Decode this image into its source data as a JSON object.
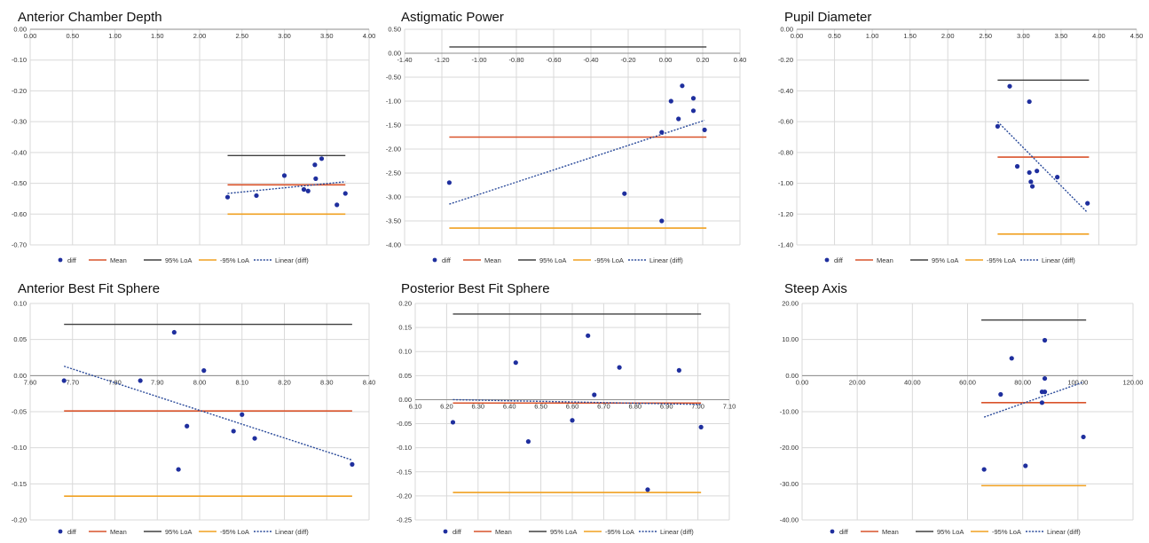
{
  "colors": {
    "point": "#1f2f9e",
    "mean": "#d9532b",
    "upper_loa": "#404040",
    "lower_loa": "#f0a020",
    "trend": "#2a4a9a",
    "grid": "#d9d9d9"
  },
  "legend": [
    "diff",
    "Mean",
    "95% LoA",
    "-95% LoA",
    "Linear (diff)"
  ],
  "chart_data": [
    {
      "type": "scatter",
      "title": "Anterior Chamber Depth",
      "xlim": [
        0,
        4
      ],
      "ylim": [
        -0.7,
        0
      ],
      "x_axis_at": 0,
      "x_ticks": [
        "0.00",
        "0.50",
        "1.00",
        "1.50",
        "2.00",
        "2.50",
        "3.00",
        "3.50",
        "4.00"
      ],
      "y_ticks": [
        "0.00",
        "-0.10",
        "-0.20",
        "-0.30",
        "-0.40",
        "-0.50",
        "-0.60",
        "-0.70"
      ],
      "points": [
        [
          2.33,
          -0.545
        ],
        [
          2.67,
          -0.54
        ],
        [
          3.0,
          -0.475
        ],
        [
          3.23,
          -0.52
        ],
        [
          3.28,
          -0.525
        ],
        [
          3.36,
          -0.44
        ],
        [
          3.37,
          -0.485
        ],
        [
          3.44,
          -0.42
        ],
        [
          3.62,
          -0.57
        ],
        [
          3.72,
          -0.533
        ]
      ],
      "mean": -0.505,
      "loa_upper": -0.41,
      "loa_lower": -0.6,
      "line_range": [
        2.33,
        3.72
      ],
      "trend": [
        [
          2.33,
          -0.533
        ],
        [
          3.72,
          -0.495
        ]
      ]
    },
    {
      "type": "scatter",
      "title": "Astigmatic Power",
      "xlim": [
        -1.4,
        0.4
      ],
      "ylim": [
        -4.0,
        0.5
      ],
      "x_axis_at": 0,
      "x_ticks": [
        "-1.40",
        "-1.20",
        "-1.00",
        "-0.80",
        "-0.60",
        "-0.40",
        "-0.20",
        "0.00",
        "0.20",
        "0.40"
      ],
      "y_ticks": [
        "0.50",
        "0.00",
        "-0.50",
        "-1.00",
        "-1.50",
        "-2.00",
        "-2.50",
        "-3.00",
        "-3.50",
        "-4.00"
      ],
      "points": [
        [
          -1.16,
          -2.7
        ],
        [
          -0.22,
          -2.93
        ],
        [
          -0.02,
          -1.65
        ],
        [
          -0.02,
          -3.5
        ],
        [
          0.03,
          -1.0
        ],
        [
          0.07,
          -1.37
        ],
        [
          0.09,
          -0.68
        ],
        [
          0.15,
          -0.94
        ],
        [
          0.15,
          -1.2
        ],
        [
          0.21,
          -1.6
        ]
      ],
      "mean": -1.75,
      "loa_upper": 0.13,
      "loa_lower": -3.65,
      "line_range": [
        -1.16,
        0.22
      ],
      "trend": [
        [
          -1.16,
          -3.15
        ],
        [
          0.21,
          -1.4
        ]
      ]
    },
    {
      "type": "scatter",
      "title": "Pupil Diameter",
      "xlim": [
        0,
        4.5
      ],
      "ylim": [
        -1.4,
        0
      ],
      "x_axis_at": 0,
      "x_ticks": [
        "0.00",
        "0.50",
        "1.00",
        "1.50",
        "2.00",
        "2.50",
        "3.00",
        "3.50",
        "4.00",
        "4.50"
      ],
      "y_ticks": [
        "0.00",
        "-0.20",
        "-0.40",
        "-0.60",
        "-0.80",
        "-1.00",
        "-1.20",
        "-1.40"
      ],
      "points": [
        [
          2.66,
          -0.63
        ],
        [
          2.82,
          -0.37
        ],
        [
          2.92,
          -0.89
        ],
        [
          3.08,
          -0.47
        ],
        [
          3.08,
          -0.93
        ],
        [
          3.1,
          -0.99
        ],
        [
          3.12,
          -1.02
        ],
        [
          3.18,
          -0.92
        ],
        [
          3.45,
          -0.96
        ],
        [
          3.85,
          -1.13
        ]
      ],
      "mean": -0.83,
      "loa_upper": -0.33,
      "loa_lower": -1.33,
      "line_range": [
        2.66,
        3.87
      ],
      "trend": [
        [
          2.66,
          -0.6
        ],
        [
          3.85,
          -1.19
        ]
      ]
    },
    {
      "type": "scatter",
      "title": "Anterior Best Fit Sphere",
      "xlim": [
        7.6,
        8.4
      ],
      "ylim": [
        -0.2,
        0.1
      ],
      "x_axis_at": 0,
      "x_ticks": [
        "7.60",
        "7.70",
        "7.80",
        "7.90",
        "8.00",
        "8.10",
        "8.20",
        "8.30",
        "8.40"
      ],
      "y_ticks": [
        "0.10",
        "0.05",
        "0.00",
        "-0.05",
        "-0.10",
        "-0.15",
        "-0.20"
      ],
      "points": [
        [
          7.68,
          -0.007
        ],
        [
          7.86,
          -0.007
        ],
        [
          7.94,
          0.06
        ],
        [
          7.95,
          -0.13
        ],
        [
          7.97,
          -0.07
        ],
        [
          8.01,
          0.007
        ],
        [
          8.08,
          -0.077
        ],
        [
          8.1,
          -0.054
        ],
        [
          8.13,
          -0.087
        ],
        [
          8.36,
          -0.123
        ]
      ],
      "mean": -0.049,
      "loa_upper": 0.071,
      "loa_lower": -0.167,
      "line_range": [
        7.68,
        8.36
      ],
      "trend": [
        [
          7.68,
          0.013
        ],
        [
          8.36,
          -0.117
        ]
      ]
    },
    {
      "type": "scatter",
      "title": "Posterior Best Fit Sphere",
      "xlim": [
        6.1,
        7.1
      ],
      "ylim": [
        -0.25,
        0.2
      ],
      "x_axis_at": 0,
      "x_ticks": [
        "6.10",
        "6.20",
        "6.30",
        "6.40",
        "6.50",
        "6.60",
        "6.70",
        "6.80",
        "6.90",
        "7.00",
        "7.10"
      ],
      "y_ticks": [
        "0.20",
        "0.15",
        "0.10",
        "0.05",
        "0.00",
        "-0.05",
        "-0.10",
        "-0.15",
        "-0.20",
        "-0.25"
      ],
      "points": [
        [
          6.22,
          -0.047
        ],
        [
          6.42,
          0.077
        ],
        [
          6.46,
          -0.087
        ],
        [
          6.6,
          -0.043
        ],
        [
          6.65,
          0.133
        ],
        [
          6.67,
          0.01
        ],
        [
          6.75,
          0.067
        ],
        [
          6.84,
          -0.187
        ],
        [
          6.94,
          0.061
        ],
        [
          7.01,
          -0.057
        ]
      ],
      "mean": -0.007,
      "loa_upper": 0.178,
      "loa_lower": -0.193,
      "line_range": [
        6.22,
        7.01
      ],
      "trend": [
        [
          6.22,
          0.0
        ],
        [
          7.01,
          -0.01
        ]
      ]
    },
    {
      "type": "scatter",
      "title": "Steep Axis",
      "xlim": [
        0,
        120
      ],
      "ylim": [
        -40,
        20
      ],
      "x_axis_at": 0,
      "x_ticks": [
        "0.00",
        "20.00",
        "40.00",
        "60.00",
        "80.00",
        "100.00",
        "120.00"
      ],
      "y_ticks": [
        "20.00",
        "10.00",
        "0.00",
        "-10.00",
        "-20.00",
        "-30.00",
        "-40.00"
      ],
      "points": [
        [
          66,
          -26
        ],
        [
          72,
          -5.2
        ],
        [
          76,
          4.8
        ],
        [
          81,
          -25
        ],
        [
          87,
          -4.5
        ],
        [
          87,
          -7.5
        ],
        [
          88,
          9.8
        ],
        [
          88,
          -0.8
        ],
        [
          88,
          -4.5
        ],
        [
          102,
          -17
        ]
      ],
      "mean": -7.5,
      "loa_upper": 15.4,
      "loa_lower": -30.5,
      "line_range": [
        65,
        103
      ],
      "trend": [
        [
          66,
          -11.5
        ],
        [
          102,
          -1.8
        ]
      ]
    }
  ]
}
